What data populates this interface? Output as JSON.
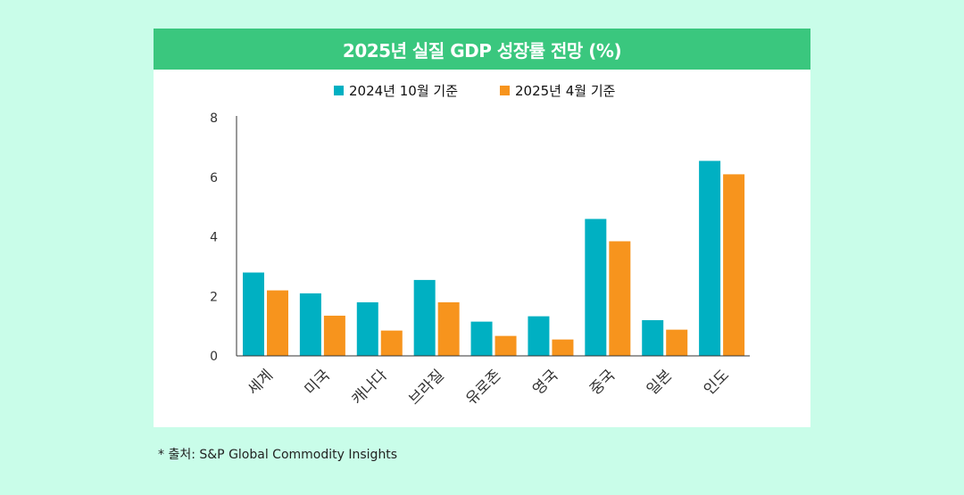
{
  "header": {
    "title": "2025년 실질 GDP 성장률 전망 (%)"
  },
  "source_note": "* 출처: S&P Global Commodity Insights",
  "colors": {
    "series1": "#00b0c2",
    "series2": "#f7941d",
    "title_bar": "#3ac77e",
    "background": "#c9fde9"
  },
  "chart_data": {
    "type": "bar",
    "title": "2025년 실질 GDP 성장률 전망 (%)",
    "xlabel": "",
    "ylabel": "",
    "ylim": [
      0,
      8
    ],
    "yticks": [
      0,
      2,
      4,
      6,
      8
    ],
    "legend_position": "top-center",
    "grid": false,
    "categories": [
      "세계",
      "미국",
      "캐나다",
      "브라질",
      "유로존",
      "영국",
      "중국",
      "일본",
      "인도"
    ],
    "series": [
      {
        "name": "2024년 10월 기준",
        "color": "#00b0c2",
        "values": [
          2.8,
          2.1,
          1.8,
          2.55,
          1.15,
          1.33,
          4.6,
          1.2,
          6.55
        ]
      },
      {
        "name": "2025년 4월 기준",
        "color": "#f7941d",
        "values": [
          2.2,
          1.35,
          0.85,
          1.8,
          0.67,
          0.55,
          3.85,
          0.88,
          6.1
        ]
      }
    ]
  }
}
